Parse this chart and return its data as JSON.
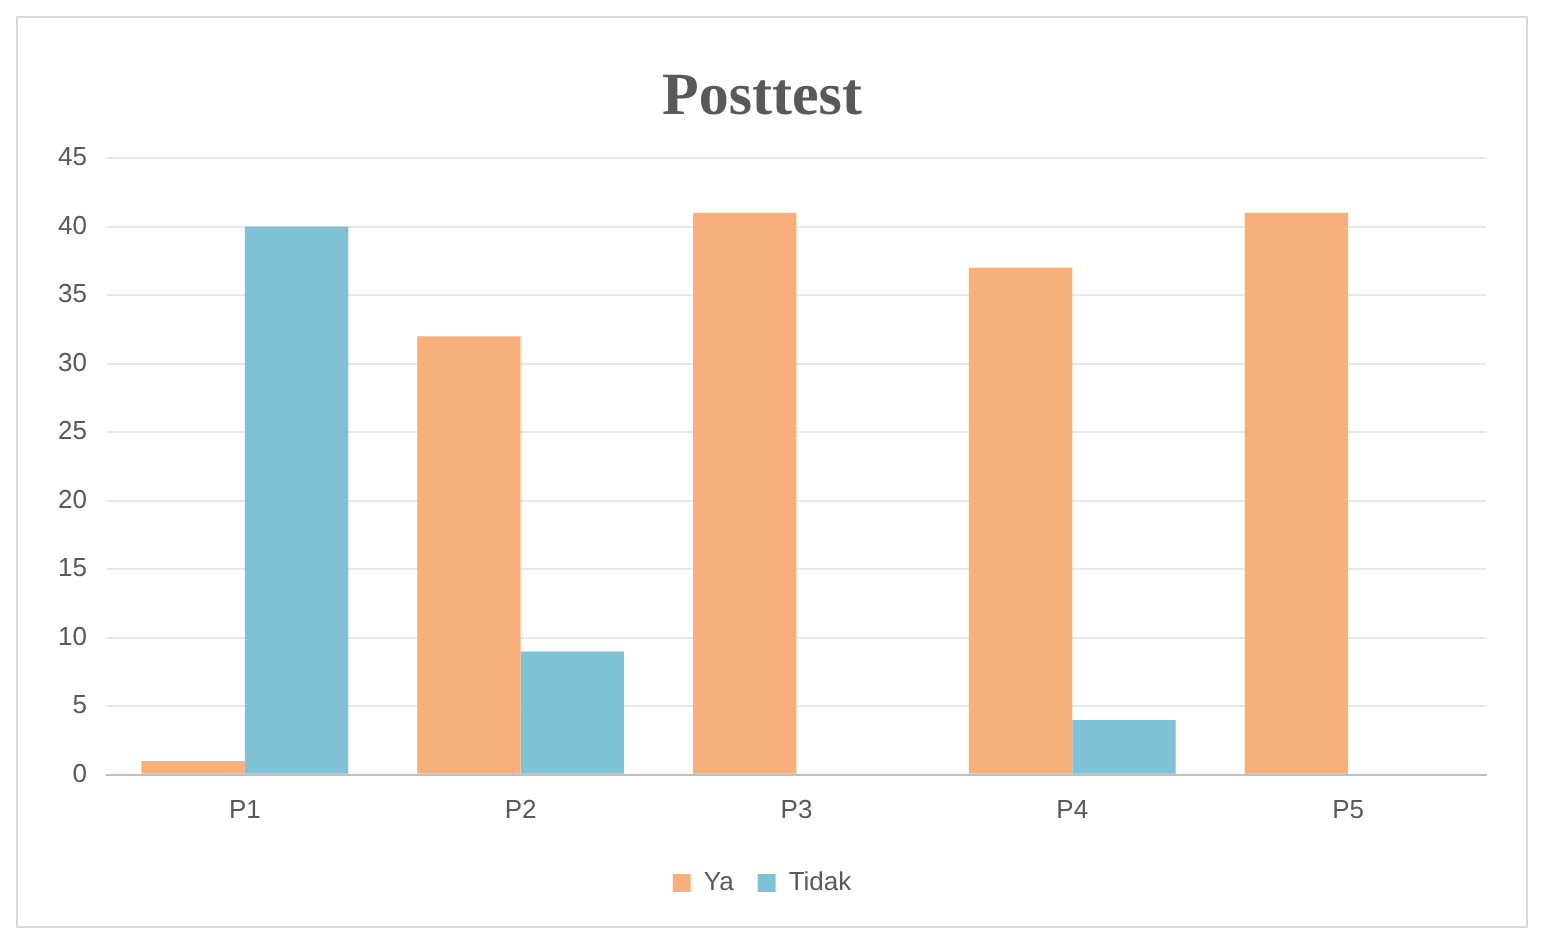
{
  "chart_data": {
    "type": "bar",
    "title": "Posttest",
    "categories": [
      "P1",
      "P2",
      "P3",
      "P4",
      "P5"
    ],
    "series": [
      {
        "name": "Ya",
        "color": "#f7b07a",
        "values": [
          1,
          32,
          41,
          37,
          41
        ]
      },
      {
        "name": "Tidak",
        "color": "#7fc1d5",
        "values": [
          40,
          9,
          0,
          4,
          0
        ]
      }
    ],
    "ylim": [
      0,
      45
    ],
    "yticks": [
      0,
      5,
      10,
      15,
      20,
      25,
      30,
      35,
      40,
      45
    ],
    "grid": "y",
    "legend": "bottom"
  }
}
